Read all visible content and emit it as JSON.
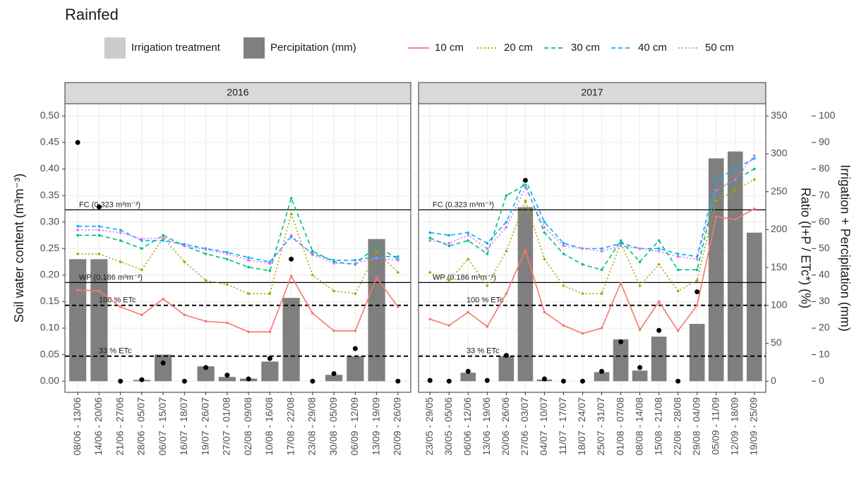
{
  "title": "Rainfed",
  "legend_extra": {
    "label": "Irrigation treatment",
    "color": "#cccccc"
  },
  "chart_data": [
    {
      "type": "combo",
      "title": "2016",
      "ylabel": "Soil water content (m³m⁻³)",
      "ylim": [
        -0.021,
        0.523
      ],
      "yticks": [
        {
          "value": 0,
          "label": "0.00"
        },
        {
          "value": 0.05,
          "label": "0.05"
        },
        {
          "value": 0.1,
          "label": "0.10"
        },
        {
          "value": 0.15,
          "label": "0.15"
        },
        {
          "value": 0.2,
          "label": "0.20"
        },
        {
          "value": 0.25,
          "label": "0.25"
        },
        {
          "value": 0.3,
          "label": "0.30"
        },
        {
          "value": 0.35,
          "label": "0.35"
        },
        {
          "value": 0.4,
          "label": "0.40"
        },
        {
          "value": 0.45,
          "label": "0.45"
        },
        {
          "value": 0.5,
          "label": "0.50"
        }
      ],
      "grid": true,
      "categories": [
        "08/06 - 13/06",
        "14/06 - 20/06",
        "21/06 - 27/06",
        "28/06 - 05/07",
        "06/07 - 15/07",
        "16/07 - 18/07",
        "19/07 - 26/07",
        "27/07 - 01/08",
        "02/08 - 09/08",
        "10/08 - 16/08",
        "17/08 - 22/08",
        "23/08 - 29/08",
        "30/08 - 05/09",
        "06/09 - 12/09",
        "13/09 - 19/09",
        "20/09 - 26/09"
      ],
      "series": [
        {
          "name": "Percipitation (mm)",
          "type": "bar",
          "axis": "y3",
          "color": "#7f7f7f",
          "values": [
            46,
            46,
            0,
            0.5,
            10,
            0,
            5.6,
            1.6,
            1,
            7.4,
            31.4,
            0,
            2.4,
            9.4,
            53.6,
            0
          ]
        },
        {
          "name": "10 cm",
          "type": "line",
          "dash": "solid",
          "color": "#F8766D",
          "values": [
            0.172,
            0.17,
            0.14,
            0.125,
            0.155,
            0.125,
            0.113,
            0.11,
            0.093,
            0.093,
            0.198,
            0.128,
            0.095,
            0.095,
            0.195,
            0.14
          ]
        },
        {
          "name": "20 cm",
          "type": "line",
          "dash": "dotted",
          "color": "#A3A500",
          "values": [
            0.24,
            0.24,
            0.225,
            0.21,
            0.27,
            0.225,
            0.19,
            0.182,
            0.165,
            0.165,
            0.315,
            0.2,
            0.17,
            0.165,
            0.245,
            0.205
          ]
        },
        {
          "name": "30 cm",
          "type": "line",
          "dash": "dashed",
          "color": "#00BF7D",
          "values": [
            0.275,
            0.275,
            0.265,
            0.25,
            0.275,
            0.255,
            0.24,
            0.23,
            0.215,
            0.208,
            0.345,
            0.245,
            0.225,
            0.22,
            0.255,
            0.23
          ]
        },
        {
          "name": "40 cm",
          "type": "line",
          "dash": "dashed",
          "color": "#00B0F6",
          "values": [
            0.292,
            0.292,
            0.285,
            0.265,
            0.265,
            0.258,
            0.25,
            0.243,
            0.233,
            0.225,
            0.272,
            0.24,
            0.228,
            0.228,
            0.235,
            0.235
          ]
        },
        {
          "name": "50 cm",
          "type": "line",
          "dash": "dotted",
          "color": "#E76BF3",
          "values": [
            0.285,
            0.285,
            0.28,
            0.268,
            0.27,
            0.255,
            0.248,
            0.24,
            0.228,
            0.222,
            0.275,
            0.238,
            0.222,
            0.222,
            0.232,
            0.228
          ]
        }
      ],
      "ratio": {
        "axis": "y2",
        "color": "#000000",
        "values": [
          315,
          230,
          0,
          2,
          24,
          0,
          18,
          8,
          3,
          30,
          161,
          0,
          10,
          43,
          null,
          0
        ]
      },
      "hlines": [
        {
          "value": 0.323,
          "axis": "y",
          "style": "solid",
          "label": "FC (0.323 m³m⁻³)"
        },
        {
          "value": 0.186,
          "axis": "y",
          "style": "solid",
          "label": "WP (0.186 m³m⁻³)"
        },
        {
          "value": 100,
          "axis": "y2",
          "style": "dashed",
          "label": "100 % ETc"
        },
        {
          "value": 33,
          "axis": "y2",
          "style": "dashed",
          "label": "33 % ETc"
        }
      ]
    },
    {
      "type": "combo",
      "title": "2017",
      "y2label": "Ratio (I+P / ETc*) (%)",
      "y2lim": [
        -14.7,
        366.1
      ],
      "y2ticks": [
        0,
        50,
        100,
        150,
        200,
        250,
        300,
        350
      ],
      "y3label": "Irrigation + Percipitation (mm)",
      "y3lim": [
        -4.2,
        104.6
      ],
      "y3ticks": [
        0,
        10,
        20,
        30,
        40,
        50,
        60,
        70,
        80,
        90,
        100
      ],
      "categories": [
        "23/05 - 29/05",
        "30/05 - 05/06",
        "06/06 - 12/06",
        "13/06 - 19/06",
        "20/06 - 26/06",
        "27/06 - 03/07",
        "04/07 - 10/07",
        "11/07 - 17/07",
        "18/07 - 24/07",
        "25/07 - 31/07",
        "01/08 - 07/08",
        "08/08 - 14/08",
        "15/08 - 21/08",
        "22/08 - 28/08",
        "29/08 - 04/09",
        "05/09 - 11/09",
        "12/09 - 18/09",
        "19/09 - 25/09"
      ],
      "series": [
        {
          "values": [
            0,
            0,
            3.2,
            0,
            9.4,
            65.6,
            0.6,
            0,
            0,
            3.4,
            15.8,
            4,
            16.8,
            0,
            21.6,
            84,
            86.6,
            56
          ]
        },
        {
          "values": [
            0.117,
            0.105,
            0.13,
            0.103,
            0.165,
            0.247,
            0.13,
            0.105,
            0.09,
            0.1,
            0.185,
            0.097,
            0.15,
            0.095,
            0.143,
            0.31,
            0.305,
            0.325
          ]
        },
        {
          "values": [
            0.205,
            0.19,
            0.23,
            0.18,
            0.245,
            0.34,
            0.23,
            0.18,
            0.165,
            0.165,
            0.26,
            0.18,
            0.22,
            0.17,
            0.19,
            0.34,
            0.36,
            0.38
          ]
        },
        {
          "values": [
            0.27,
            0.255,
            0.265,
            0.24,
            0.35,
            0.37,
            0.28,
            0.24,
            0.22,
            0.21,
            0.265,
            0.225,
            0.265,
            0.21,
            0.21,
            0.36,
            0.38,
            0.4
          ]
        },
        {
          "values": [
            0.28,
            0.275,
            0.28,
            0.26,
            0.3,
            0.38,
            0.3,
            0.26,
            0.25,
            0.25,
            0.26,
            0.25,
            0.25,
            0.24,
            0.235,
            0.38,
            0.4,
            0.42
          ]
        },
        {
          "values": [
            0.265,
            0.26,
            0.275,
            0.25,
            0.29,
            0.365,
            0.29,
            0.255,
            0.25,
            0.245,
            0.255,
            0.25,
            0.245,
            0.235,
            0.23,
            0.36,
            0.38,
            0.425
          ]
        }
      ],
      "ratio": {
        "values": [
          1,
          0,
          13,
          1,
          34,
          265,
          3,
          0,
          0,
          13,
          52,
          18,
          67,
          0,
          118,
          null,
          null,
          null
        ]
      },
      "hlines": [
        {
          "value": 0.323,
          "label": "FC (0.323 m³m⁻³)"
        },
        {
          "value": 0.186,
          "label": "WP (0.186 m³m⁻³)"
        },
        {
          "value": 100,
          "label": "100 % ETc"
        },
        {
          "value": 33,
          "label": "33 % ETc"
        }
      ]
    }
  ]
}
